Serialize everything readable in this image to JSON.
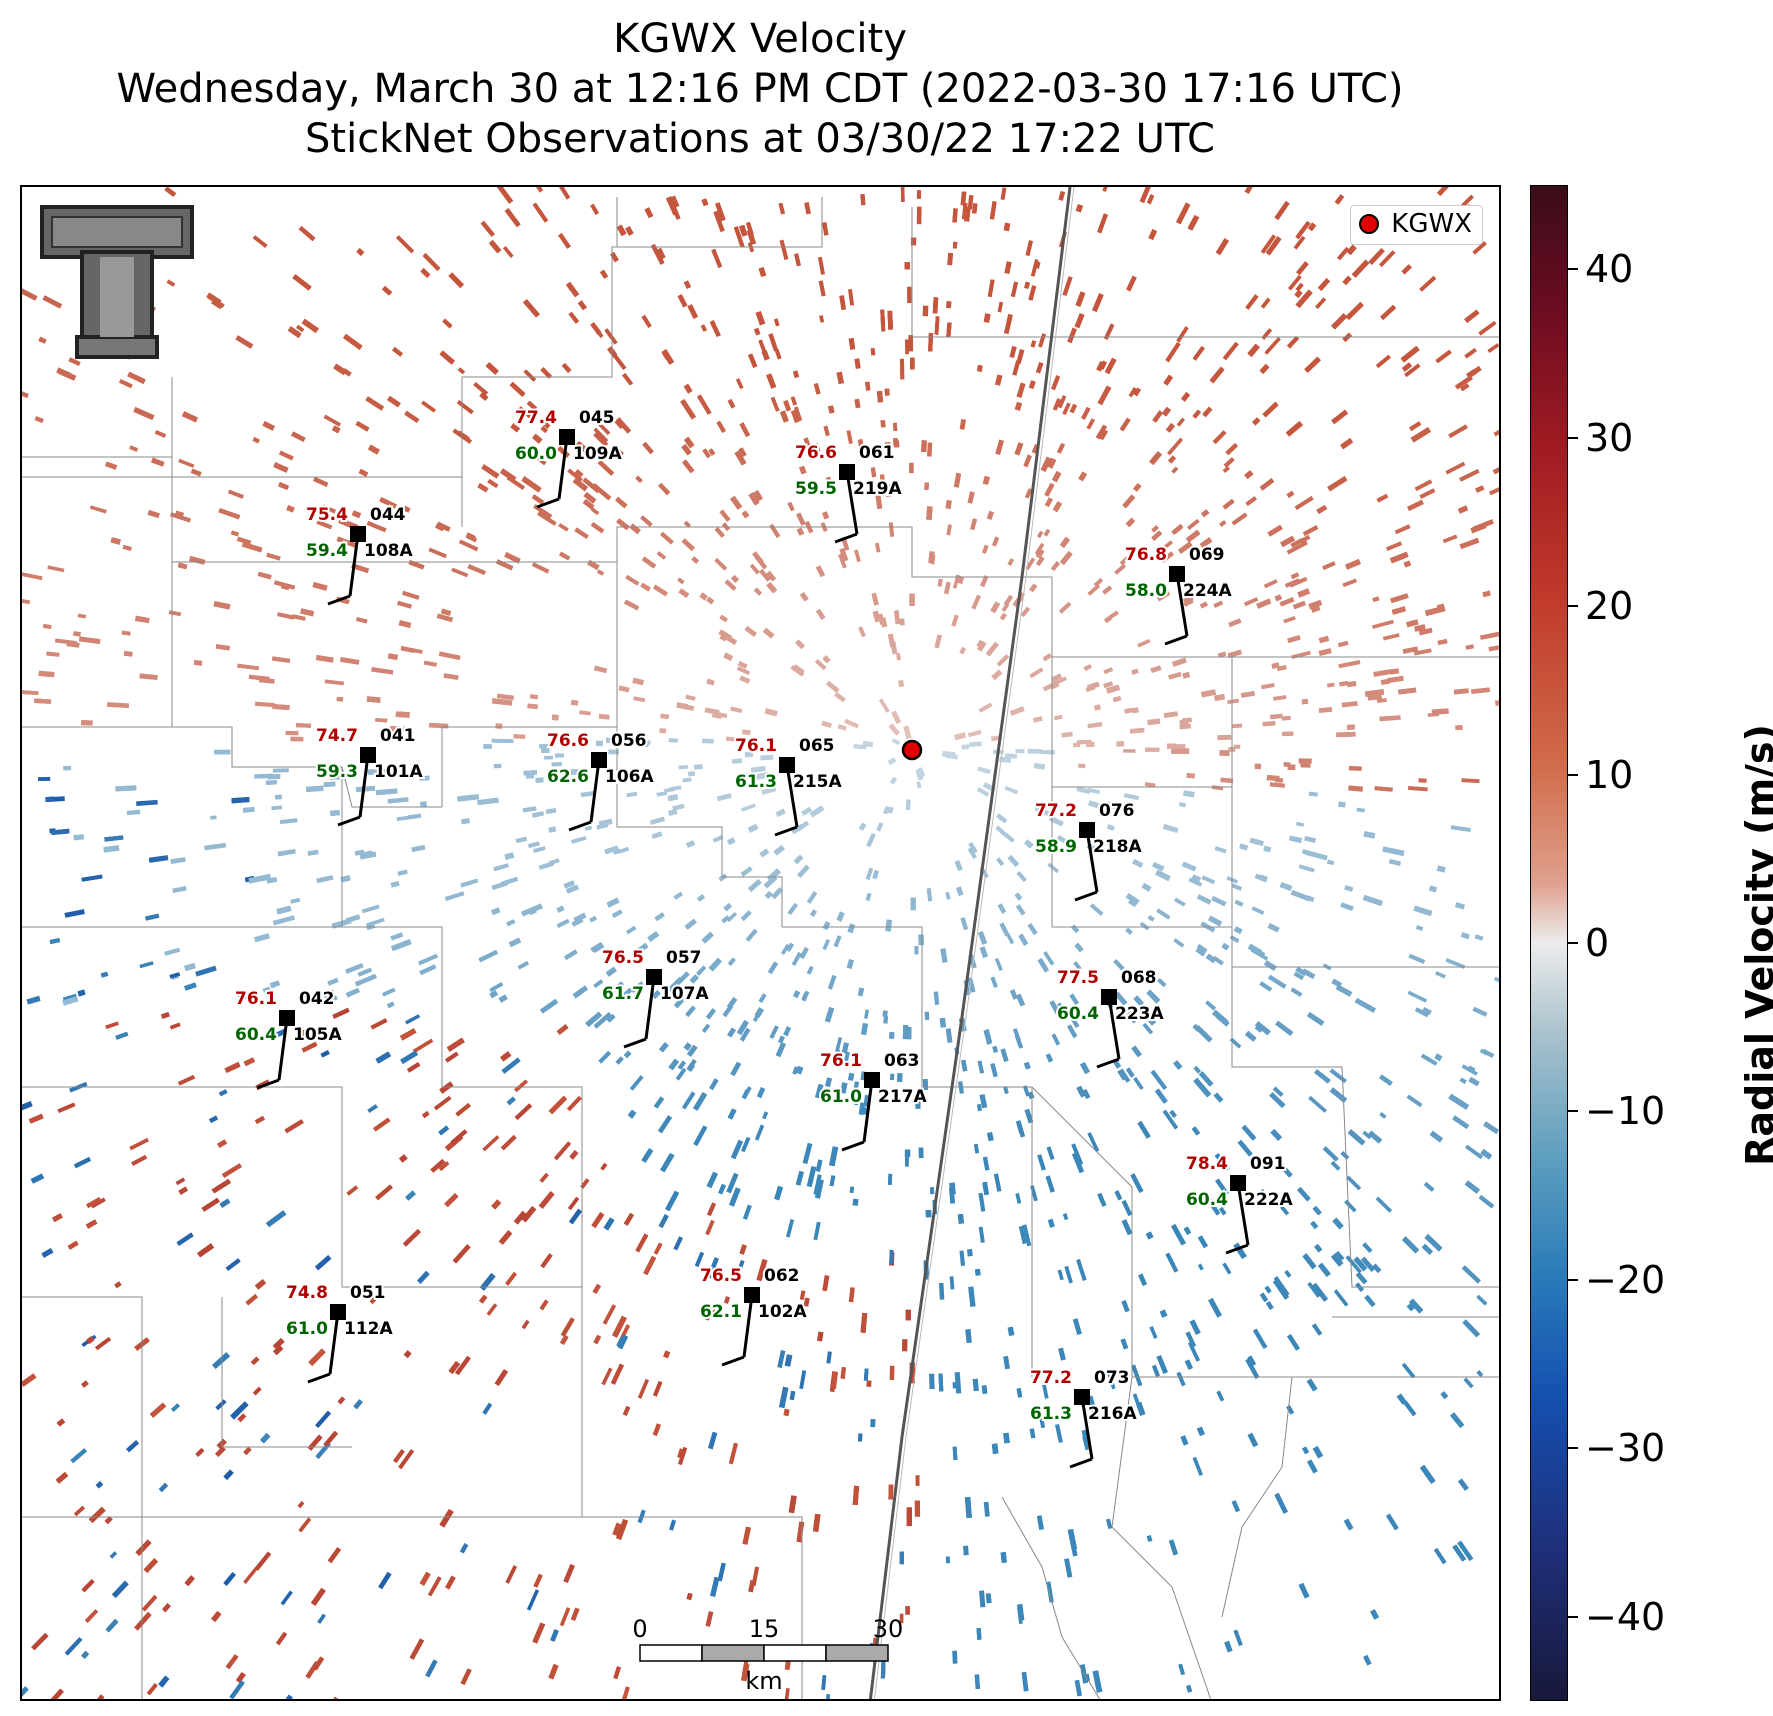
{
  "title": {
    "line1": "KGWX Velocity",
    "line2": "Wednesday, March 30 at 12:16 PM CDT (2022-03-30 17:16 UTC)",
    "line3": "StickNet Observations at 03/30/22 17:22 UTC"
  },
  "legend": {
    "label": "KGWX"
  },
  "colorbar": {
    "label": "Radial Velocity (m/s)",
    "ticks": [
      "40",
      "30",
      "20",
      "10",
      "0",
      "−10",
      "−20",
      "−30",
      "−40"
    ],
    "range": [
      -45,
      45
    ],
    "colors": {
      "positive": "#c0392b",
      "negative": "#2b7bb9",
      "neutral": "#ececec"
    }
  },
  "scale_bar": {
    "ticks": [
      "0",
      "15",
      "30"
    ],
    "unit": "km"
  },
  "radar": {
    "name": "KGWX",
    "color": "#e00000"
  },
  "stations": [
    {
      "id": "109A",
      "num": "045",
      "temp": "77.4",
      "dew": "60.0"
    },
    {
      "id": "219A",
      "num": "061",
      "temp": "76.6",
      "dew": "59.5"
    },
    {
      "id": "108A",
      "num": "044",
      "temp": "75.4",
      "dew": "59.4"
    },
    {
      "id": "224A",
      "num": "069",
      "temp": "76.8",
      "dew": "58.0"
    },
    {
      "id": "101A",
      "num": "041",
      "temp": "74.7",
      "dew": "59.3"
    },
    {
      "id": "106A",
      "num": "056",
      "temp": "76.6",
      "dew": "62.6"
    },
    {
      "id": "215A",
      "num": "065",
      "temp": "76.1",
      "dew": "61.3"
    },
    {
      "id": "218A",
      "num": "076",
      "temp": "77.2",
      "dew": "58.9"
    },
    {
      "id": "107A",
      "num": "057",
      "temp": "76.5",
      "dew": "61.7"
    },
    {
      "id": "105A",
      "num": "042",
      "temp": "76.1",
      "dew": "60.4"
    },
    {
      "id": "223A",
      "num": "068",
      "temp": "77.5",
      "dew": "60.4"
    },
    {
      "id": "217A",
      "num": "063",
      "temp": "76.1",
      "dew": "61.0"
    },
    {
      "id": "222A",
      "num": "091",
      "temp": "78.4",
      "dew": "60.4"
    },
    {
      "id": "112A",
      "num": "051",
      "temp": "74.8",
      "dew": "61.0"
    },
    {
      "id": "102A",
      "num": "062",
      "temp": "76.5",
      "dew": "62.1"
    },
    {
      "id": "216A",
      "num": "073",
      "temp": "77.2",
      "dew": "61.3"
    }
  ]
}
